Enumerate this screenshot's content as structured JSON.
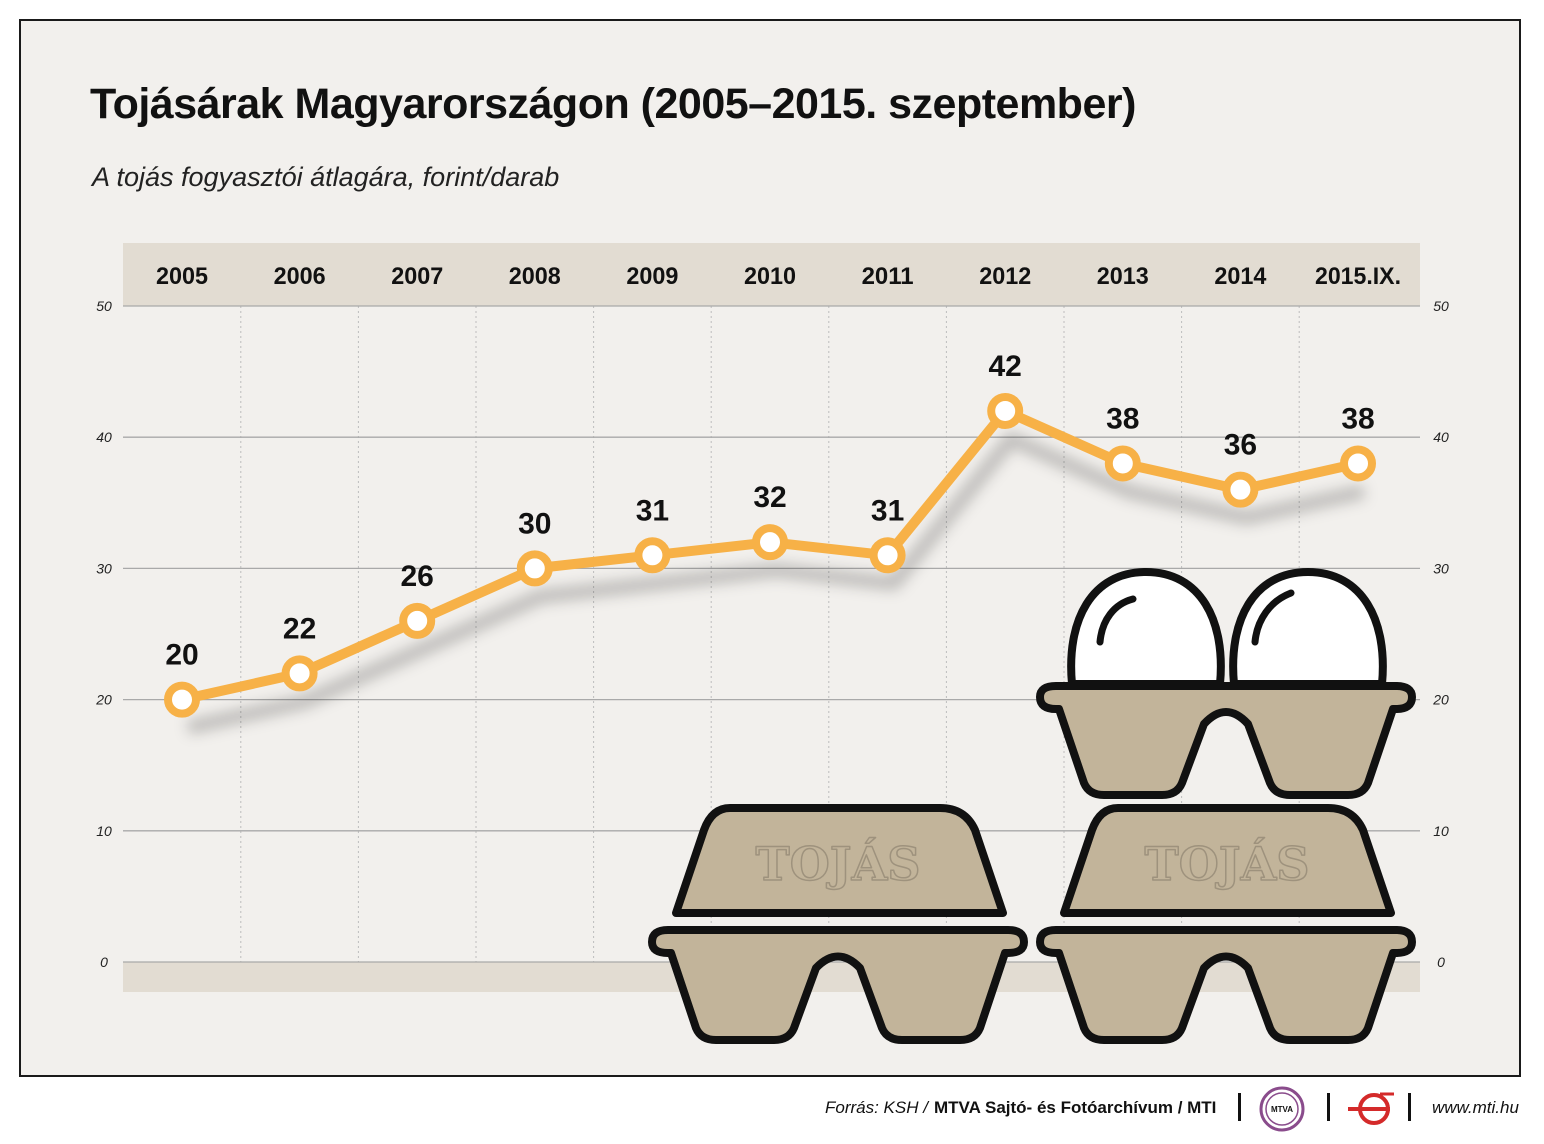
{
  "title": "Tojásárak Magyarországon (2005–2015. szeptember)",
  "subtitle": "A tojás fogyasztói átlagára, forint/darab",
  "colors": {
    "line": "#f7b147",
    "band": "#e2dcd2",
    "carton": "#c2b49a",
    "frame_bg": "#f2f0ed",
    "grid": "#a9a9a9"
  },
  "chart_data": {
    "type": "line",
    "categories": [
      "2005",
      "2006",
      "2007",
      "2008",
      "2009",
      "2010",
      "2011",
      "2012",
      "2013",
      "2014",
      "2015.IX."
    ],
    "series": [
      {
        "values": [
          20,
          22,
          26,
          30,
          31,
          32,
          31,
          42,
          38,
          36,
          38
        ]
      }
    ],
    "y_ticks": [
      "0",
      "10",
      "20",
      "30",
      "40",
      "50"
    ],
    "ylim": [
      0,
      50
    ],
    "grid": true,
    "legend": "none"
  },
  "illustration": {
    "icon": "egg-carton-icon",
    "carton_label": "TOJÁS"
  },
  "footer": {
    "source_label": "Forrás: KSH /",
    "source_org": "MTVA Sajtó- és Fotóarchívum / MTI",
    "logo_text": "MTVA",
    "url": "www.mti.hu"
  }
}
